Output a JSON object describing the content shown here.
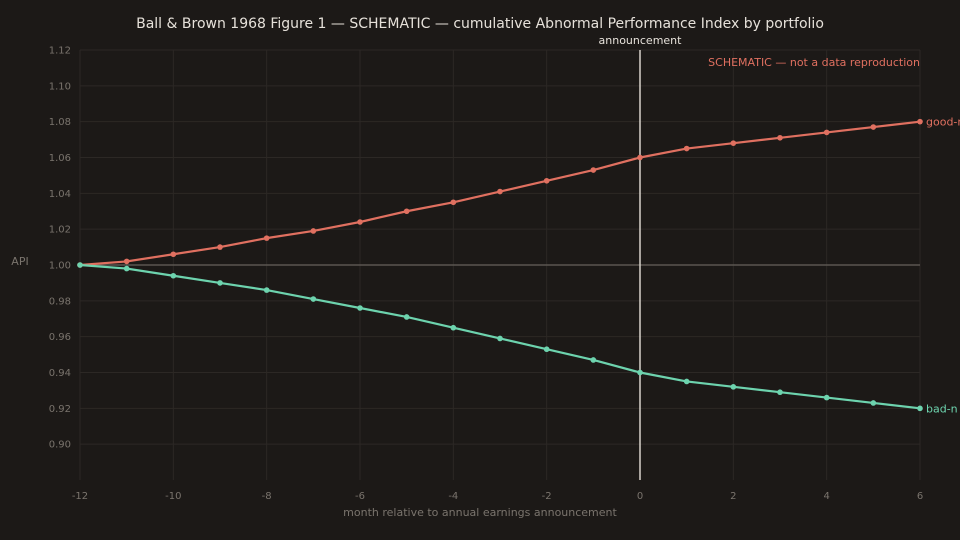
{
  "chart_data": {
    "type": "line",
    "title": "Ball & Brown 1968 Figure 1 — SCHEMATIC — cumulative Abnormal Performance Index by portfolio",
    "xlabel": "month relative to annual earnings announcement",
    "ylabel": "API",
    "xlim": [
      -12,
      6
    ],
    "ylim": [
      0.88,
      1.12
    ],
    "x_ticks": [
      -12,
      -10,
      -8,
      -6,
      -4,
      -2,
      0,
      2,
      4,
      6
    ],
    "y_ticks": [
      0.9,
      0.92,
      0.94,
      0.96,
      0.98,
      1.0,
      1.02,
      1.04,
      1.06,
      1.08,
      1.1,
      1.12
    ],
    "grid": true,
    "reference_line_y": 1.0,
    "vertical_marker": {
      "x": 0,
      "label": "announcement"
    },
    "note": "SCHEMATIC — not a data reproduction",
    "x": [
      -12,
      -11,
      -10,
      -9,
      -8,
      -7,
      -6,
      -5,
      -4,
      -3,
      -2,
      -1,
      0,
      1,
      2,
      3,
      4,
      5,
      6
    ],
    "series": [
      {
        "name": "good-news",
        "label_visible": "good-n",
        "color": "#e07060",
        "values": [
          1.0,
          1.002,
          1.006,
          1.01,
          1.015,
          1.019,
          1.024,
          1.03,
          1.035,
          1.041,
          1.047,
          1.053,
          1.06,
          1.065,
          1.068,
          1.071,
          1.074,
          1.077,
          1.08
        ]
      },
      {
        "name": "bad-news",
        "label_visible": "bad-n",
        "color": "#6dd3ae",
        "values": [
          1.0,
          0.998,
          0.994,
          0.99,
          0.986,
          0.981,
          0.976,
          0.971,
          0.965,
          0.959,
          0.953,
          0.947,
          0.94,
          0.935,
          0.932,
          0.929,
          0.926,
          0.923,
          0.92
        ]
      }
    ]
  }
}
